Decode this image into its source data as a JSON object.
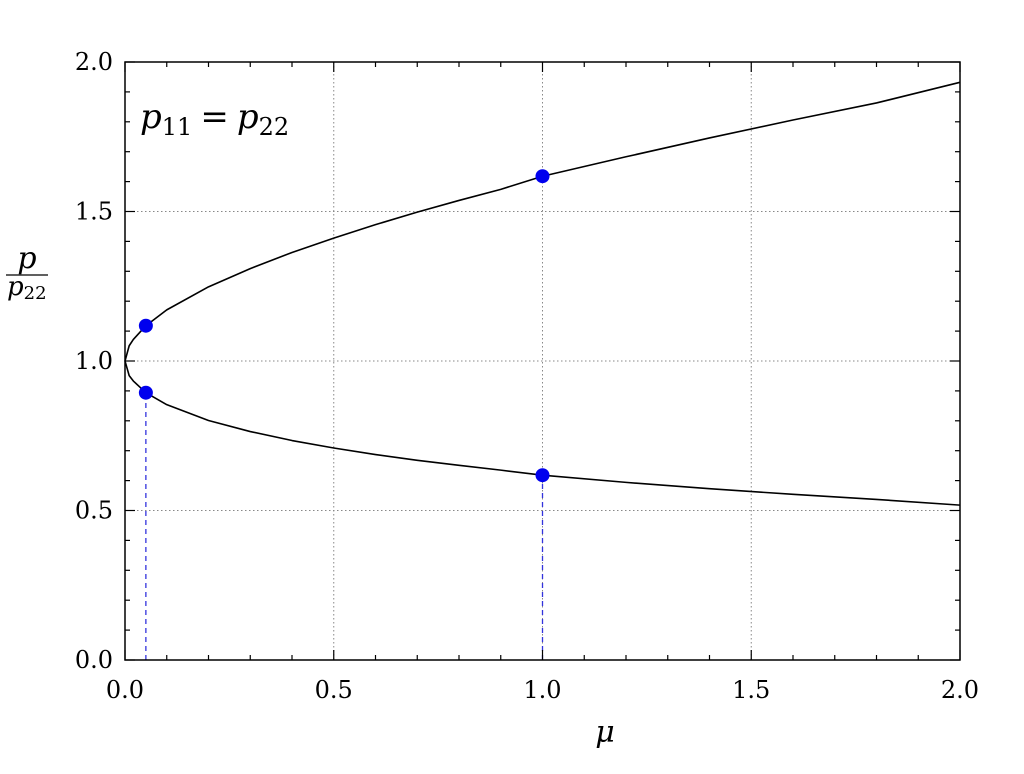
{
  "chart_data": {
    "type": "line",
    "annotation": {
      "base": "p",
      "sub1": "11",
      "eq": "=",
      "sub2": "22"
    },
    "xlabel": "μ",
    "ylabel": {
      "numerator": "p",
      "denominator_base": "p",
      "denominator_sub": "22"
    },
    "xlim": [
      0.0,
      2.0
    ],
    "ylim": [
      0.0,
      2.0
    ],
    "xticks": [
      "0.0",
      "0.5",
      "1.0",
      "1.5",
      "2.0"
    ],
    "yticks": [
      "0.0",
      "0.5",
      "1.0",
      "1.5",
      "2.0"
    ],
    "grid": true,
    "series": [
      {
        "x": [
          0,
          0.01,
          0.02,
          0.05,
          0.1,
          0.2,
          0.3,
          0.4,
          0.5,
          0.6,
          0.7,
          0.8,
          0.9,
          1.0,
          1.2,
          1.4,
          1.6,
          1.8,
          2.0
        ],
        "y": [
          1.0,
          1.051,
          1.072,
          1.118,
          1.171,
          1.248,
          1.309,
          1.363,
          1.411,
          1.456,
          1.498,
          1.537,
          1.574,
          1.618,
          1.683,
          1.746,
          1.806,
          1.863,
          1.932
        ],
        "color": "#000000"
      },
      {
        "x": [
          0,
          0.01,
          0.02,
          0.05,
          0.1,
          0.2,
          0.3,
          0.4,
          0.5,
          0.6,
          0.7,
          0.8,
          0.9,
          1.0,
          1.2,
          1.4,
          1.6,
          1.8,
          2.0
        ],
        "y": [
          1.0,
          0.951,
          0.933,
          0.894,
          0.854,
          0.801,
          0.764,
          0.734,
          0.709,
          0.687,
          0.668,
          0.651,
          0.635,
          0.618,
          0.594,
          0.573,
          0.554,
          0.537,
          0.518
        ],
        "color": "#000000"
      }
    ],
    "points": [
      {
        "x": 0.05,
        "y": 1.118
      },
      {
        "x": 0.05,
        "y": 0.894
      },
      {
        "x": 1.0,
        "y": 1.618
      },
      {
        "x": 1.0,
        "y": 0.618
      }
    ],
    "dashed_verticals": [
      {
        "x": 0.05,
        "y_from": 0.0,
        "y_to": 0.894
      },
      {
        "x": 1.0,
        "y_from": 0.0,
        "y_to": 0.618
      }
    ],
    "colors": {
      "points": "#0000ee",
      "dashed": "#3333dd",
      "curve": "#000000",
      "grid": "#888888"
    }
  }
}
